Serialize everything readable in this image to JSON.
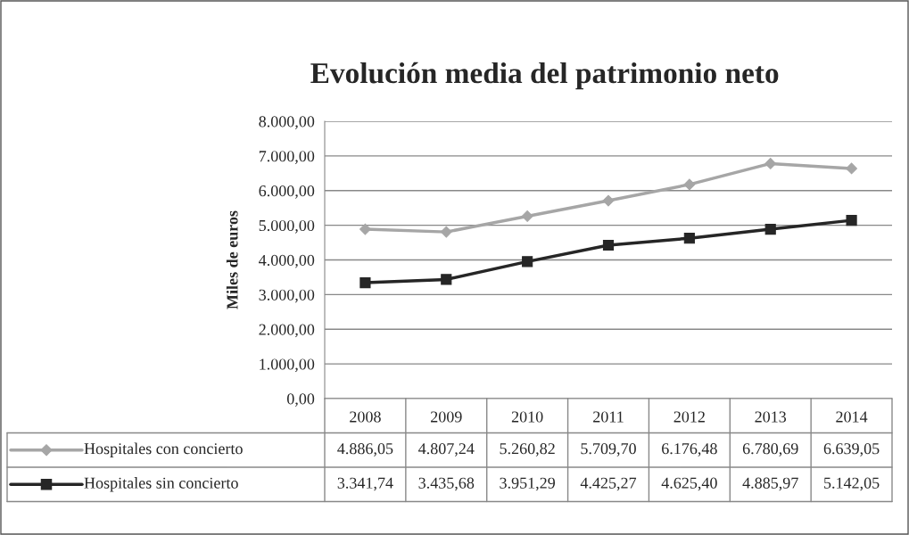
{
  "chart_data": {
    "type": "line",
    "title": "Evolución media del patrimonio neto",
    "ylabel": "Miles de euros",
    "categories": [
      "2008",
      "2009",
      "2010",
      "2011",
      "2012",
      "2013",
      "2014"
    ],
    "series": [
      {
        "name": "Hospitales con concierto",
        "color": "#a6a6a6",
        "marker": "diamond",
        "values": [
          4886.05,
          4807.24,
          5260.82,
          5709.7,
          6176.48,
          6780.69,
          6639.05
        ],
        "value_labels": [
          "4.886,05",
          "4.807,24",
          "5.260,82",
          "5.709,70",
          "6.176,48",
          "6.780,69",
          "6.639,05"
        ]
      },
      {
        "name": "Hospitales sin concierto",
        "color": "#262626",
        "marker": "square",
        "values": [
          3341.74,
          3435.68,
          3951.29,
          4425.27,
          4625.4,
          4885.97,
          5142.05
        ],
        "value_labels": [
          "3.341,74",
          "3.435,68",
          "3.951,29",
          "4.425,27",
          "4.625,40",
          "4.885,97",
          "5.142,05"
        ]
      }
    ],
    "ylim": [
      0,
      8000
    ],
    "yticks": [
      {
        "value": 0,
        "label": "0,00"
      },
      {
        "value": 1000,
        "label": "1.000,00"
      },
      {
        "value": 2000,
        "label": "2.000,00"
      },
      {
        "value": 3000,
        "label": "3.000,00"
      },
      {
        "value": 4000,
        "label": "4.000,00"
      },
      {
        "value": 5000,
        "label": "5.000,00"
      },
      {
        "value": 6000,
        "label": "6.000,00"
      },
      {
        "value": 7000,
        "label": "7.000,00"
      },
      {
        "value": 8000,
        "label": "8.000,00"
      }
    ],
    "grid": "y",
    "legend": "bottom"
  }
}
